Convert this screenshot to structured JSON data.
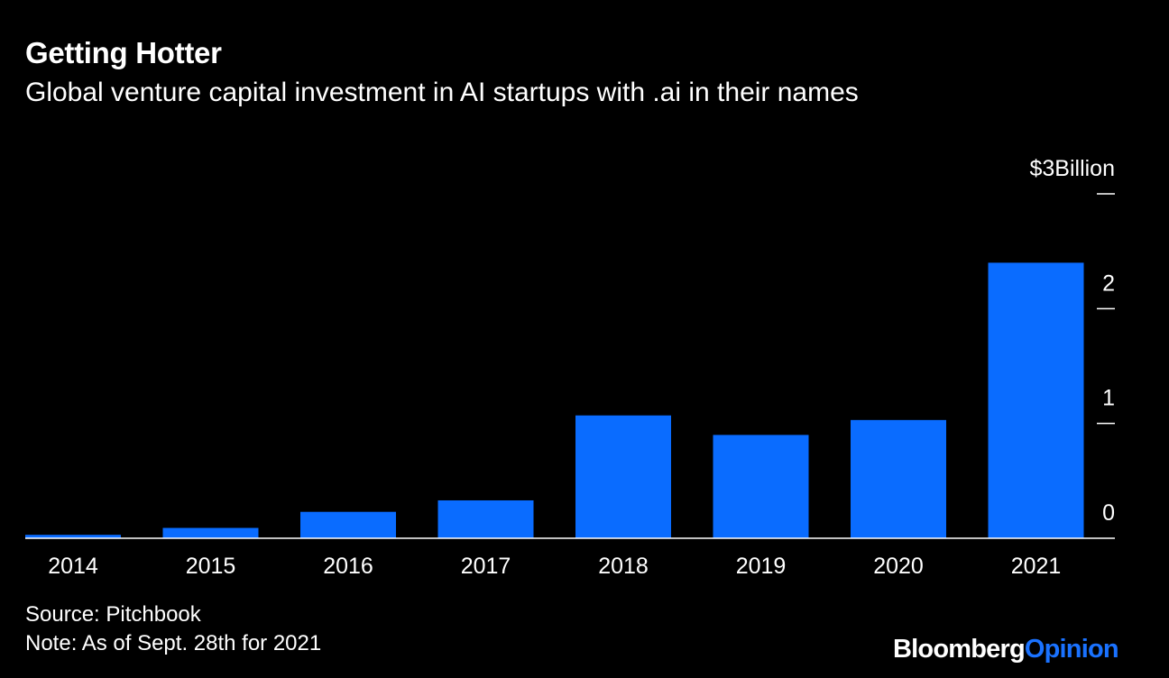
{
  "header": {
    "title": "Getting Hotter",
    "subtitle": "Global venture capital investment in AI startups with .ai in their names"
  },
  "footer": {
    "source": "Source: Pitchbook",
    "note": "Note: As of Sept. 28th for 2021",
    "brand_primary": "Bloomberg",
    "brand_secondary": "Opinion"
  },
  "colors": {
    "bar": "#0a6cff",
    "background": "#000000",
    "text": "#ffffff",
    "brand_accent": "#1a72ff"
  },
  "chart_data": {
    "type": "bar",
    "title": "Getting Hotter",
    "subtitle": "Global venture capital investment in AI startups with .ai in their names",
    "categories": [
      "2014",
      "2015",
      "2016",
      "2017",
      "2018",
      "2019",
      "2020",
      "2021"
    ],
    "values": [
      0.03,
      0.09,
      0.23,
      0.33,
      1.07,
      0.9,
      1.03,
      2.4
    ],
    "ylim": [
      0,
      3
    ],
    "yticks": [
      {
        "value": 3,
        "label": "$3Billion"
      },
      {
        "value": 2,
        "label": "2"
      },
      {
        "value": 1,
        "label": "1"
      },
      {
        "value": 0,
        "label": "0"
      }
    ],
    "xlabel": "",
    "ylabel": "",
    "axis_side": "right",
    "grid": false
  }
}
